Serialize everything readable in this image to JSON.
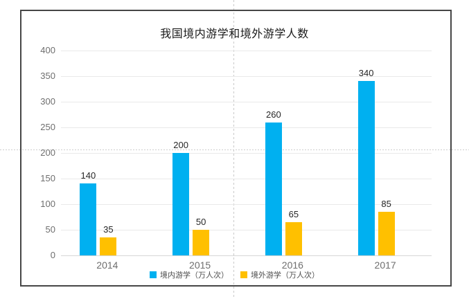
{
  "chart_data": {
    "type": "bar",
    "title": "我国境内游学和境外游学人数",
    "categories": [
      "2014",
      "2015",
      "2016",
      "2017"
    ],
    "series": [
      {
        "name": "境内游学（万人次）",
        "color": "#00B0F0",
        "values": [
          140,
          200,
          260,
          340
        ]
      },
      {
        "name": "境外游学（万人次）",
        "color": "#FFC000",
        "values": [
          35,
          50,
          65,
          85
        ]
      }
    ],
    "ylim": [
      0,
      400
    ],
    "yticks": [
      0,
      50,
      100,
      150,
      200,
      250,
      300,
      350,
      400
    ],
    "xlabel": "",
    "ylabel": "",
    "grid": true,
    "value_labels": true,
    "legend_position": "bottom"
  },
  "colors": {
    "series_domestic": "#00B0F0",
    "series_overseas": "#FFC000",
    "gridline": "#e9e9e9",
    "axis_line": "#d6d6d6",
    "tick_label": "#6e6e6e",
    "value_label": "#262626",
    "title": "#1a1a1a",
    "legend_label": "#4d4d4d",
    "frame_border": "#464646",
    "guide": "#c9c9c9",
    "background": "#ffffff"
  }
}
